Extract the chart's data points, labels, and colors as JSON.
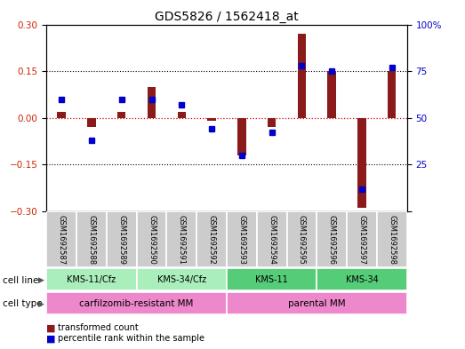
{
  "title": "GDS5826 / 1562418_at",
  "samples": [
    "GSM1692587",
    "GSM1692588",
    "GSM1692589",
    "GSM1692590",
    "GSM1692591",
    "GSM1692592",
    "GSM1692593",
    "GSM1692594",
    "GSM1692595",
    "GSM1692596",
    "GSM1692597",
    "GSM1692598"
  ],
  "red_values": [
    0.02,
    -0.03,
    0.02,
    0.1,
    0.02,
    -0.01,
    -0.12,
    -0.03,
    0.27,
    0.15,
    -0.29,
    0.15
  ],
  "blue_values": [
    60,
    38,
    60,
    60,
    57,
    44,
    30,
    42,
    78,
    75,
    12,
    77
  ],
  "ylim_left": [
    -0.3,
    0.3
  ],
  "ylim_right": [
    0,
    100
  ],
  "yticks_left": [
    -0.3,
    -0.15,
    0,
    0.15,
    0.3
  ],
  "yticks_right": [
    0,
    25,
    50,
    75,
    100
  ],
  "red_color": "#8B1A1A",
  "blue_color": "#0000CC",
  "zero_line_color": "#CC0000",
  "background_color": "#ffffff",
  "title_fontsize": 10,
  "cell_line_groups": [
    {
      "label": "KMS-11/Cfz",
      "start": 0,
      "end": 2,
      "color": "#AAEEBB"
    },
    {
      "label": "KMS-34/Cfz",
      "start": 3,
      "end": 5,
      "color": "#AAEEBB"
    },
    {
      "label": "KMS-11",
      "start": 6,
      "end": 8,
      "color": "#55CC77"
    },
    {
      "label": "KMS-34",
      "start": 9,
      "end": 11,
      "color": "#55CC77"
    }
  ],
  "cell_type_groups": [
    {
      "label": "carfilzomib-resistant MM",
      "start": 0,
      "end": 5,
      "color": "#EE88CC"
    },
    {
      "label": "parental MM",
      "start": 6,
      "end": 11,
      "color": "#EE88CC"
    }
  ]
}
